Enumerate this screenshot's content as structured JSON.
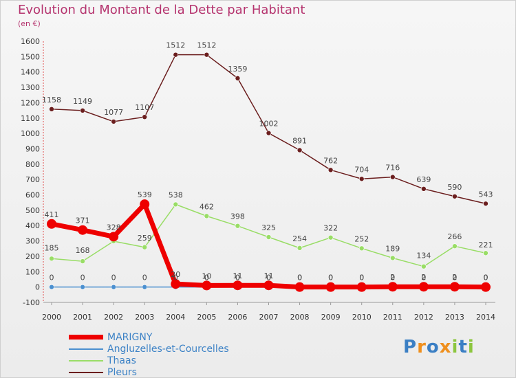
{
  "title": "Evolution du Montant de la Dette par Habitant",
  "unit": "(en €)",
  "logo_text": "Proxiti",
  "chart_data": {
    "type": "line",
    "x": [
      "2000",
      "2001",
      "2002",
      "2003",
      "2004",
      "2005",
      "2006",
      "2007",
      "2008",
      "2009",
      "2010",
      "2011",
      "2012",
      "2013",
      "2014"
    ],
    "ylim": [
      -100,
      1600
    ],
    "yticks": [
      -100,
      0,
      100,
      200,
      300,
      400,
      500,
      600,
      700,
      800,
      900,
      1000,
      1100,
      1200,
      1300,
      1400,
      1500,
      1600
    ],
    "grid": false,
    "legend_position": "bottom-left",
    "series": [
      {
        "name": "MARIGNY",
        "color": "#ee0000",
        "width": 7,
        "marker": 7,
        "z": 3,
        "labels": true,
        "labelPos": "above",
        "values": [
          411,
          371,
          328,
          539,
          20,
          10,
          11,
          11,
          0,
          0,
          0,
          2,
          2,
          2,
          0
        ],
        "labelText": [
          "411",
          "371",
          "328",
          "539",
          "20",
          "10",
          "11",
          "11",
          "0",
          "0",
          "0",
          "2",
          "2",
          "2",
          "0"
        ]
      },
      {
        "name": "Angluzelles-et-Courcelles",
        "color": "#4a8fcf",
        "width": 1.5,
        "marker": 3.5,
        "z": 1,
        "labels": true,
        "labelPos": "above",
        "values": [
          0,
          0,
          0,
          0,
          0,
          0,
          0,
          0,
          0,
          0,
          0,
          0,
          0,
          0,
          0
        ],
        "labelText": [
          "0",
          "0",
          "0",
          "0",
          "0",
          "0",
          "0",
          "0",
          "0",
          "0",
          "0",
          "0",
          "0",
          "0",
          "0"
        ]
      },
      {
        "name": "Thaas",
        "color": "#99dd66",
        "width": 1.5,
        "marker": 3.5,
        "z": 2,
        "labels": true,
        "labelPos": "mixed",
        "values": [
          185,
          168,
          298,
          259,
          538,
          462,
          398,
          325,
          254,
          322,
          252,
          189,
          134,
          266,
          221
        ],
        "labelText": [
          "185",
          "168",
          "",
          "259",
          "538",
          "462",
          "398",
          "325",
          "254",
          "322",
          "252",
          "189",
          "134",
          "266",
          "221"
        ]
      },
      {
        "name": "Pleurs",
        "color": "#6b1e1e",
        "width": 1.5,
        "marker": 3.5,
        "z": 2,
        "labels": true,
        "labelPos": "above",
        "values": [
          1158,
          1149,
          1077,
          1107,
          1512,
          1512,
          1359,
          1002,
          891,
          762,
          704,
          716,
          639,
          590,
          543
        ],
        "labelText": [
          "1158",
          "1149",
          "1077",
          "1107",
          "1512",
          "1512",
          "1359",
          "1002",
          "891",
          "762",
          "704",
          "716",
          "639",
          "590",
          "543"
        ]
      }
    ]
  }
}
